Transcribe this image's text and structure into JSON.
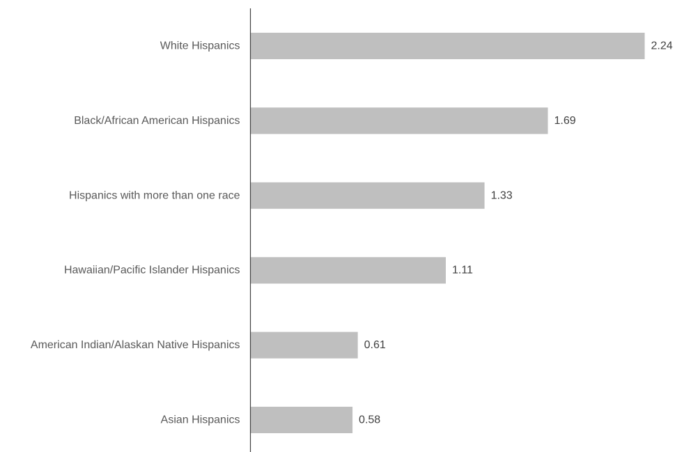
{
  "chart_data": {
    "type": "bar",
    "orientation": "horizontal",
    "categories": [
      "White Hispanics",
      "Black/African American Hispanics",
      "Hispanics with more than one race",
      "Hawaiian/Pacific Islander Hispanics",
      "American Indian/Alaskan Native Hispanics",
      "Asian Hispanics"
    ],
    "values": [
      2.24,
      1.69,
      1.33,
      1.11,
      0.61,
      0.58
    ],
    "value_labels": [
      "2.24",
      "1.69",
      "1.33",
      "1.11",
      "0.61",
      "0.58"
    ],
    "title": "",
    "xlabel": "",
    "ylabel": "",
    "xlim": [
      0,
      2.24
    ],
    "grid": false,
    "legend": "none",
    "colors": {
      "bar": "#bfbfbf",
      "axis": "#404040",
      "category_text": "#595959",
      "value_text": "#404040"
    }
  }
}
